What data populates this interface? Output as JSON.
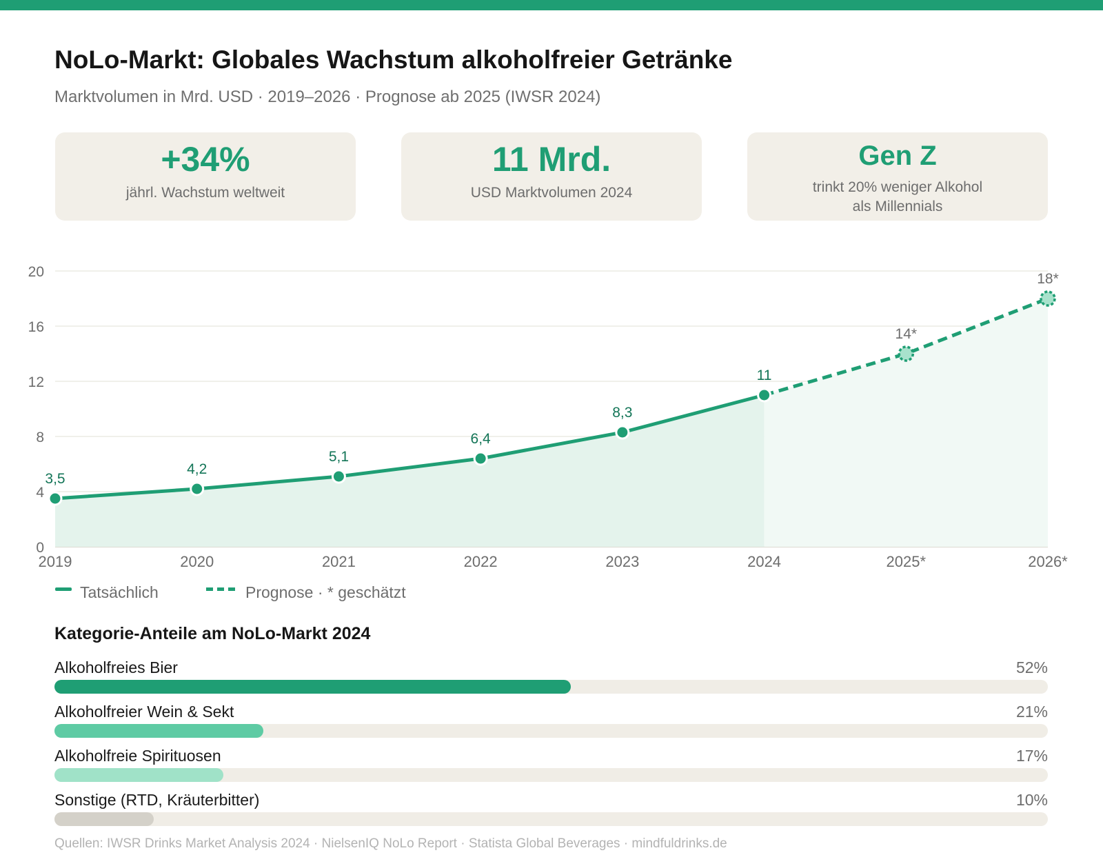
{
  "header": {
    "title": "NoLo-Markt: Globales Wachstum alkoholfreier Getränke",
    "subtitle": "Marktvolumen in Mrd. USD · 2019–2026 · Prognose ab 2025 (IWSR 2024)"
  },
  "kpis": [
    {
      "value": "+34%",
      "label": "jährl. Wachstum weltweit",
      "label2": ""
    },
    {
      "value": "11 Mrd.",
      "label": "USD Marktvolumen 2024",
      "label2": ""
    },
    {
      "value": "Gen Z",
      "label": "trinkt 20% weniger Alkohol",
      "label2": "als Millennials"
    }
  ],
  "colors": {
    "accent": "#1f9e74",
    "accent_dark": "#137557",
    "forecast_fill": "#a8e2cc",
    "area_actual": "#e4f3ec",
    "area_forecast": "#f1f9f5",
    "grid": "#ecebe4",
    "track": "#f0ede6"
  },
  "chart_data": {
    "type": "line",
    "x": [
      "2019",
      "2020",
      "2021",
      "2022",
      "2023",
      "2024",
      "2025*",
      "2026*"
    ],
    "series": [
      {
        "name": "Tatsächlich",
        "values": [
          3.5,
          4.2,
          5.1,
          6.4,
          8.3,
          11,
          null,
          null
        ]
      },
      {
        "name": "Prognose · * geschätzt",
        "values": [
          null,
          null,
          null,
          null,
          null,
          11,
          14,
          18
        ]
      }
    ],
    "data_labels": [
      "3,5",
      "4,2",
      "5,1",
      "6,4",
      "8,3",
      "11",
      "14*",
      "18*"
    ],
    "ylim": [
      0,
      20
    ],
    "yticks": [
      0,
      4,
      8,
      12,
      16,
      20
    ],
    "grid": true,
    "legend": "bottom-left"
  },
  "legend": {
    "actual": "Tatsächlich",
    "forecast": "Prognose · * geschätzt"
  },
  "categories": {
    "title": "Kategorie-Anteile am NoLo-Markt 2024",
    "items": [
      {
        "label": "Alkoholfreies Bier",
        "value_text": "52%",
        "share": 52,
        "color": "#1f9e74"
      },
      {
        "label": "Alkoholfreier Wein & Sekt",
        "value_text": "21%",
        "share": 21,
        "color": "#5ecba4"
      },
      {
        "label": "Alkoholfreie Spirituosen",
        "value_text": "17%",
        "share": 17,
        "color": "#a0e2c8"
      },
      {
        "label": "Sonstige (RTD, Kräuterbitter)",
        "value_text": "10%",
        "share": 10,
        "color": "#d4d1c9"
      }
    ]
  },
  "footer": {
    "source": "Quellen: IWSR Drinks Market Analysis 2024 · NielsenIQ NoLo Report · Statista Global Beverages · mindfuldrinks.de"
  }
}
